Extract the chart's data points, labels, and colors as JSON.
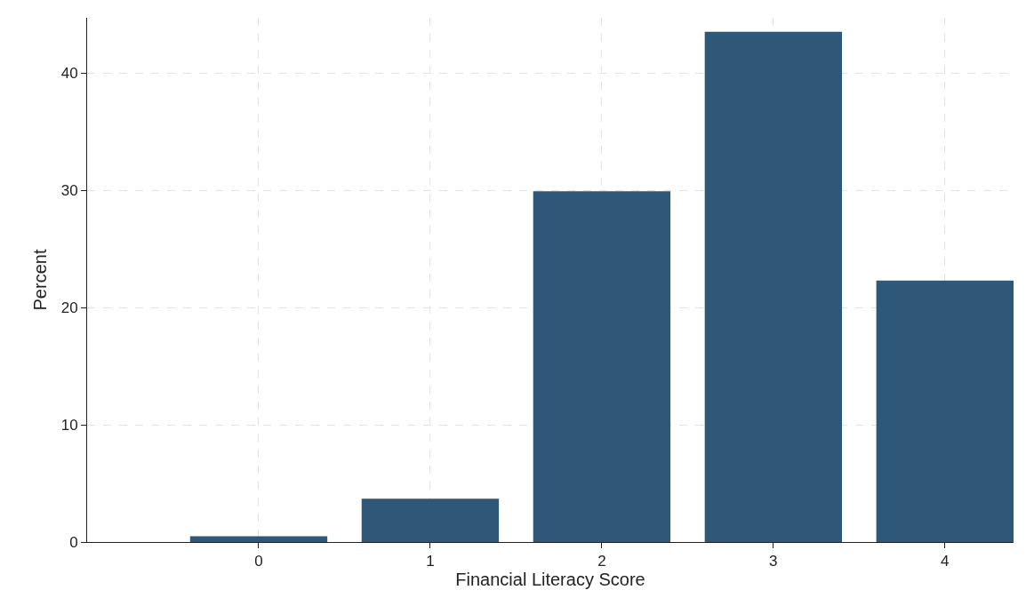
{
  "chart_data": {
    "type": "bar",
    "xlabel": "Financial Literacy Score",
    "ylabel": "Percent",
    "x": [
      0,
      1,
      2,
      3,
      4
    ],
    "values": [
      0.5,
      3.7,
      29.9,
      43.5,
      22.3
    ],
    "color": "#2f5778",
    "xlim": [
      -1,
      4.4
    ],
    "xticks": [
      0,
      1,
      2,
      3,
      4
    ],
    "ylim": [
      0,
      44.7
    ],
    "yticks": [
      0,
      10,
      20,
      30,
      40
    ],
    "grid": true
  }
}
